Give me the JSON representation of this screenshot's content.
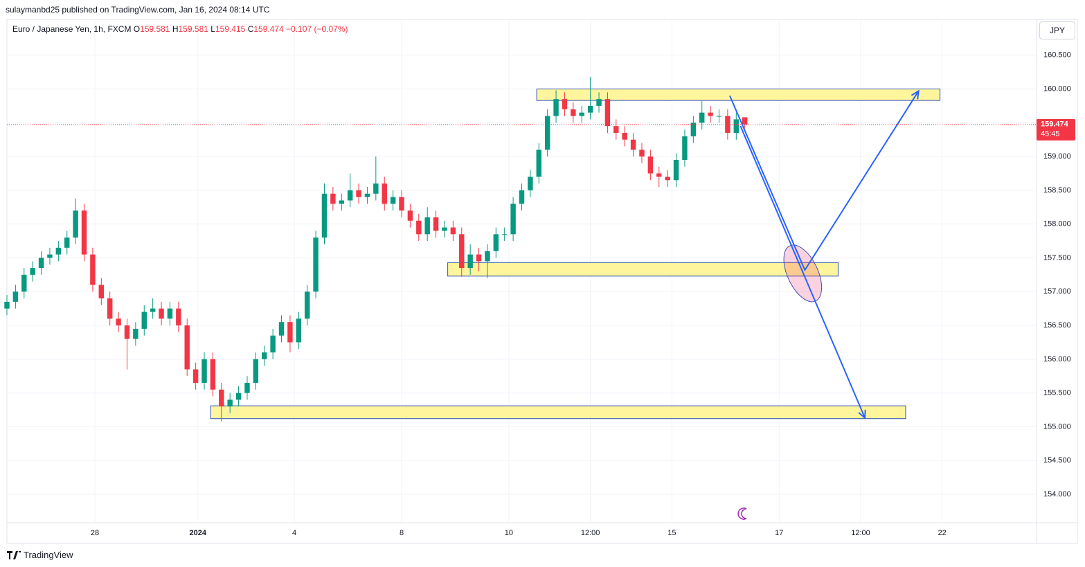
{
  "header": {
    "published": "sulaymanbd25 published on TradingView.com, Jan 16, 2024 08:14 UTC",
    "symbol": "Euro / Japanese Yen, 1h, FXCM",
    "ohlc_labels": [
      "O",
      "H",
      "L",
      "C"
    ],
    "change": "−0.107 (−0.07%)",
    "currency": "JPY",
    "countdown": "45:45"
  },
  "footer": {
    "brand": "TradingView"
  },
  "chart_data": {
    "type": "candlestick",
    "up_color": "#089981",
    "down_color": "#f23645",
    "grid": true,
    "xlim": [
      0,
      480
    ],
    "xticks": [
      {
        "value": 41,
        "label": "28"
      },
      {
        "value": 89,
        "label": "2024"
      },
      {
        "value": 134,
        "label": "4"
      },
      {
        "value": 184,
        "label": "8"
      },
      {
        "value": 234,
        "label": "10"
      },
      {
        "value": 272,
        "label": "12:00"
      },
      {
        "value": 310,
        "label": "15"
      },
      {
        "value": 360,
        "label": "17"
      },
      {
        "value": 398,
        "label": "12:00"
      },
      {
        "value": 436,
        "label": "22"
      }
    ],
    "ylim": [
      153.58,
      161.03
    ],
    "yticks": [
      {
        "value": 154.0,
        "label": "154.000"
      },
      {
        "value": 154.5,
        "label": "154.500"
      },
      {
        "value": 155.0,
        "label": "155.000"
      },
      {
        "value": 155.5,
        "label": "155.500"
      },
      {
        "value": 156.0,
        "label": "156.000"
      },
      {
        "value": 156.5,
        "label": "156.500"
      },
      {
        "value": 157.0,
        "label": "157.000"
      },
      {
        "value": 157.5,
        "label": "157.500"
      },
      {
        "value": 158.0,
        "label": "158.000"
      },
      {
        "value": 158.5,
        "label": "158.500"
      },
      {
        "value": 159.0,
        "label": "159.000"
      },
      {
        "value": 159.5,
        "label": "159.500"
      },
      {
        "value": 160.0,
        "label": "160.000"
      },
      {
        "value": 160.5,
        "label": "160.500"
      }
    ],
    "candles": {
      "x": [
        0,
        4,
        8,
        12,
        16,
        20,
        24,
        28,
        32,
        36,
        40,
        44,
        48,
        52,
        56,
        60,
        64,
        68,
        72,
        76,
        80,
        84,
        88,
        92,
        96,
        100,
        104,
        108,
        112,
        116,
        120,
        124,
        128,
        132,
        136,
        140,
        144,
        148,
        152,
        156,
        160,
        164,
        168,
        172,
        176,
        180,
        184,
        188,
        192,
        196,
        200,
        204,
        208,
        212,
        216,
        220,
        224,
        228,
        232,
        236,
        240,
        244,
        248,
        252,
        256,
        260,
        264,
        268,
        272,
        276,
        280,
        284,
        288,
        292,
        296,
        300,
        304,
        308,
        312,
        316,
        320,
        324,
        328,
        332,
        336,
        340,
        344
      ],
      "open": [
        156.75,
        156.85,
        157.0,
        157.25,
        157.35,
        157.5,
        157.55,
        157.65,
        157.8,
        158.2,
        157.55,
        157.1,
        156.9,
        156.6,
        156.5,
        156.3,
        156.45,
        156.7,
        156.75,
        156.6,
        156.75,
        156.5,
        155.85,
        155.65,
        156.0,
        155.55,
        155.3,
        155.4,
        155.5,
        155.65,
        156.0,
        156.1,
        156.35,
        156.55,
        156.25,
        156.6,
        157.0,
        157.8,
        158.45,
        158.3,
        158.35,
        158.5,
        158.4,
        158.45,
        158.6,
        158.3,
        158.4,
        158.2,
        158.05,
        157.85,
        158.1,
        157.9,
        157.95,
        157.85,
        157.35,
        157.55,
        157.45,
        157.6,
        157.85,
        157.85,
        158.3,
        158.5,
        158.7,
        159.1,
        159.6,
        159.85,
        159.7,
        159.6,
        159.65,
        159.75,
        159.85,
        159.45,
        159.35,
        159.25,
        159.1,
        159.0,
        158.75,
        158.7,
        158.65,
        158.95,
        159.3,
        159.5,
        159.65,
        159.6,
        159.6,
        159.35,
        159.581
      ],
      "high": [
        156.95,
        157.1,
        157.35,
        157.45,
        157.6,
        157.65,
        157.75,
        157.9,
        158.38,
        158.3,
        157.65,
        157.2,
        157.0,
        156.7,
        156.6,
        156.55,
        156.8,
        156.9,
        156.85,
        156.85,
        156.85,
        156.6,
        155.95,
        156.1,
        156.1,
        155.65,
        155.5,
        155.6,
        155.75,
        156.1,
        156.2,
        156.45,
        156.65,
        156.65,
        156.7,
        157.1,
        157.9,
        158.6,
        158.55,
        158.45,
        158.75,
        158.6,
        158.55,
        159.0,
        158.7,
        158.5,
        158.5,
        158.3,
        158.15,
        158.25,
        158.2,
        158.05,
        158.05,
        157.95,
        157.7,
        157.65,
        157.7,
        157.95,
        157.95,
        158.4,
        158.6,
        158.8,
        159.2,
        159.7,
        159.98,
        159.95,
        159.8,
        159.75,
        160.18,
        159.95,
        159.95,
        159.55,
        159.45,
        159.35,
        159.2,
        159.1,
        158.85,
        158.8,
        159.05,
        159.4,
        159.6,
        159.82,
        159.75,
        159.7,
        159.7,
        159.65,
        159.581
      ],
      "low": [
        156.65,
        156.75,
        156.9,
        157.15,
        157.25,
        157.4,
        157.45,
        157.55,
        157.7,
        157.45,
        157.0,
        156.8,
        156.5,
        156.4,
        155.85,
        156.2,
        156.35,
        156.6,
        156.5,
        156.5,
        156.4,
        155.75,
        155.55,
        155.55,
        155.45,
        155.08,
        155.2,
        155.3,
        155.4,
        155.55,
        155.9,
        156.0,
        156.25,
        156.1,
        156.15,
        156.5,
        156.9,
        157.7,
        158.2,
        158.2,
        158.25,
        158.3,
        158.3,
        158.35,
        158.2,
        158.2,
        158.1,
        157.95,
        157.75,
        157.75,
        157.8,
        157.8,
        157.75,
        157.22,
        157.25,
        157.3,
        157.2,
        157.5,
        157.75,
        157.75,
        158.2,
        158.4,
        158.6,
        159.0,
        159.5,
        159.6,
        159.5,
        159.5,
        159.55,
        159.65,
        159.35,
        159.25,
        159.15,
        159.0,
        158.9,
        158.65,
        158.55,
        158.55,
        158.55,
        158.85,
        159.2,
        159.4,
        159.5,
        159.5,
        159.25,
        159.25,
        159.415
      ],
      "close": [
        156.85,
        157.0,
        157.25,
        157.35,
        157.5,
        157.55,
        157.65,
        157.8,
        158.2,
        157.55,
        157.1,
        156.9,
        156.6,
        156.5,
        156.3,
        156.45,
        156.7,
        156.75,
        156.6,
        156.75,
        156.5,
        155.85,
        155.65,
        156.0,
        155.55,
        155.3,
        155.4,
        155.5,
        155.65,
        156.0,
        156.1,
        156.35,
        156.55,
        156.25,
        156.6,
        157.0,
        157.8,
        158.45,
        158.3,
        158.35,
        158.5,
        158.4,
        158.45,
        158.6,
        158.3,
        158.4,
        158.2,
        158.05,
        157.85,
        158.1,
        157.9,
        157.95,
        157.85,
        157.35,
        157.55,
        157.45,
        157.6,
        157.85,
        157.85,
        158.3,
        158.5,
        158.7,
        159.1,
        159.6,
        159.85,
        159.7,
        159.6,
        159.65,
        159.75,
        159.85,
        159.45,
        159.35,
        159.25,
        159.1,
        159.0,
        158.75,
        158.7,
        158.65,
        158.95,
        159.3,
        159.5,
        159.65,
        159.6,
        159.6,
        159.35,
        159.55,
        159.474
      ]
    },
    "zones": [
      {
        "x": [
          247,
          435
        ],
        "y": [
          159.83,
          160.0
        ]
      },
      {
        "x": [
          205.5,
          387.5
        ],
        "y": [
          157.23,
          157.43
        ]
      },
      {
        "x": [
          95,
          419
        ],
        "y": [
          155.12,
          155.31
        ]
      }
    ],
    "zone_color": "#fff59d",
    "arrows": [
      {
        "x": [
          337,
          372,
          425
        ],
        "y": [
          159.9,
          157.32,
          159.97
        ]
      },
      {
        "x": [
          342,
          400
        ],
        "y": [
          159.45,
          155.13
        ]
      }
    ],
    "arrow_color": "#2962ff",
    "highlight": {
      "x": 371,
      "y": 157.27
    }
  }
}
